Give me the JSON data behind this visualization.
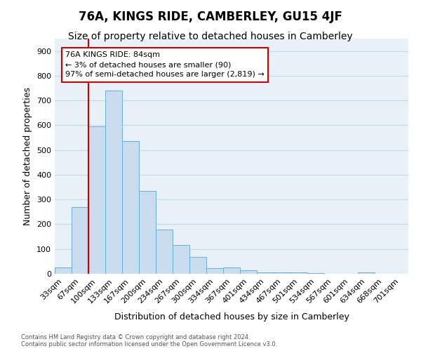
{
  "title": "76A, KINGS RIDE, CAMBERLEY, GU15 4JF",
  "subtitle": "Size of property relative to detached houses in Camberley",
  "xlabel": "Distribution of detached houses by size in Camberley",
  "ylabel": "Number of detached properties",
  "categories": [
    "33sqm",
    "67sqm",
    "100sqm",
    "133sqm",
    "167sqm",
    "200sqm",
    "234sqm",
    "267sqm",
    "300sqm",
    "334sqm",
    "367sqm",
    "401sqm",
    "434sqm",
    "467sqm",
    "501sqm",
    "534sqm",
    "567sqm",
    "601sqm",
    "634sqm",
    "668sqm",
    "701sqm"
  ],
  "values": [
    25,
    270,
    595,
    740,
    535,
    335,
    178,
    115,
    68,
    22,
    25,
    15,
    5,
    5,
    5,
    3,
    0,
    0,
    5,
    0,
    0
  ],
  "bar_color": "#c9ddef",
  "bar_edge_color": "#6aaed6",
  "subject_label": "76A KINGS RIDE: 84sqm",
  "annotation_line1": "← 3% of detached houses are smaller (90)",
  "annotation_line2": "97% of semi-detached houses are larger (2,819) →",
  "annotation_box_color": "#ffffff",
  "annotation_box_edge": "#cc0000",
  "subject_line_color": "#cc0000",
  "ylim": [
    0,
    950
  ],
  "yticks": [
    0,
    100,
    200,
    300,
    400,
    500,
    600,
    700,
    800,
    900
  ],
  "grid_color": "#c8d8e8",
  "bg_color": "#e8f0f8",
  "footer_line1": "Contains HM Land Registry data © Crown copyright and database right 2024.",
  "footer_line2": "Contains public sector information licensed under the Open Government Licence v3.0.",
  "title_fontsize": 12,
  "subtitle_fontsize": 10,
  "axis_label_fontsize": 9,
  "tick_fontsize": 8,
  "annot_fontsize": 8,
  "footer_fontsize": 6
}
